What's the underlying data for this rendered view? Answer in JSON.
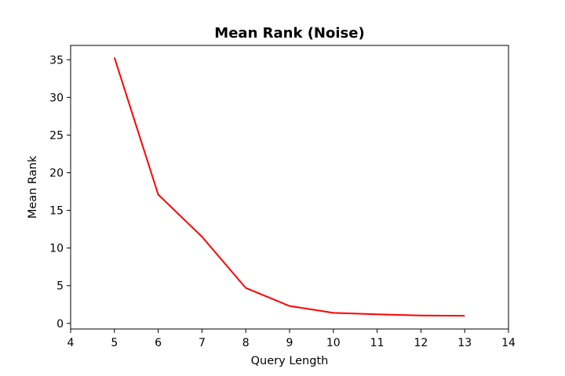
{
  "chart_data": {
    "type": "line",
    "title": "Mean Rank (Noise)",
    "xlabel": "Query Length",
    "ylabel": "Mean Rank",
    "xlim": [
      4,
      14
    ],
    "ylim": [
      -0.75,
      36.9
    ],
    "xticks": [
      4,
      5,
      6,
      7,
      8,
      9,
      10,
      11,
      12,
      13,
      14
    ],
    "yticks": [
      0,
      5,
      10,
      15,
      20,
      25,
      30,
      35
    ],
    "grid": false,
    "series": [
      {
        "color": "#ff0000",
        "x": [
          5,
          6,
          7,
          8,
          9,
          10,
          11,
          12,
          13
        ],
        "y": [
          35.3,
          17.1,
          11.5,
          4.7,
          2.3,
          1.4,
          1.2,
          1.05,
          1.0
        ]
      }
    ]
  }
}
